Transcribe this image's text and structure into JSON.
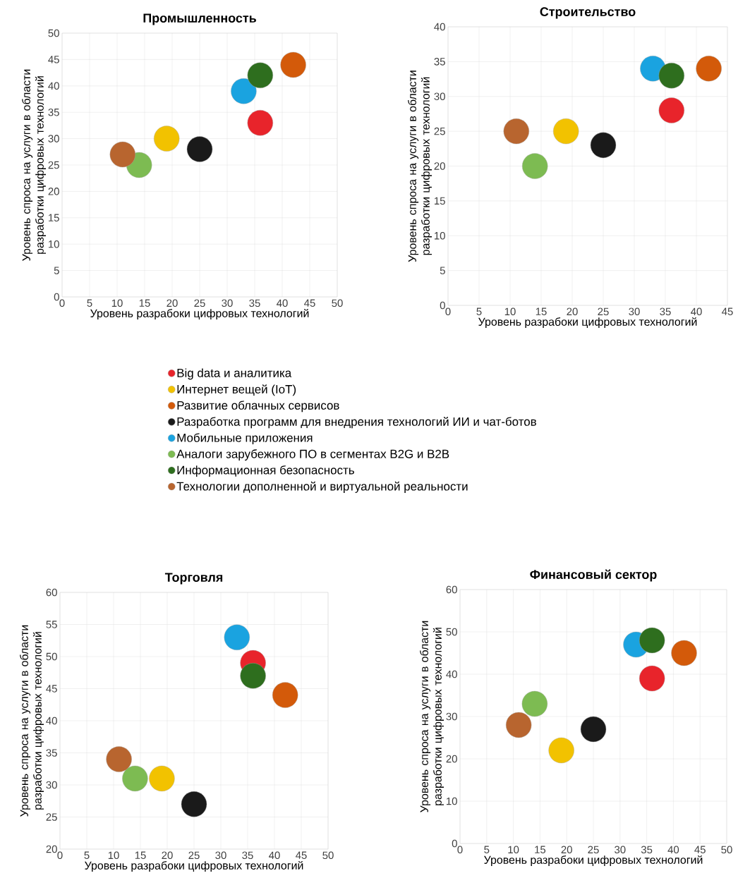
{
  "chart_data": [
    {
      "type": "bubble",
      "title": "Промышленность",
      "xlabel": "Уровень разрабоки цифровых технологий",
      "ylabel": "Уровень спроса на услуги в области разработки цифровых технологий",
      "xlim": [
        0,
        50
      ],
      "ylim": [
        0,
        50
      ],
      "xticks": [
        0,
        5,
        10,
        15,
        20,
        25,
        30,
        35,
        40,
        45,
        50
      ],
      "yticks": [
        0,
        5,
        10,
        15,
        20,
        25,
        30,
        35,
        40,
        45,
        50
      ],
      "grid": true,
      "legend": "bottom",
      "series": [
        {
          "name": "Big data и аналитика",
          "color": "#e8242b",
          "x": [
            36
          ],
          "values": [
            33
          ],
          "sizes": [
            1
          ]
        },
        {
          "name": "Интернет вещей (IoT)",
          "color": "#f2c200",
          "x": [
            19
          ],
          "values": [
            30
          ],
          "sizes": [
            1
          ]
        },
        {
          "name": "Развитие облачных сервисов",
          "color": "#d35a0a",
          "x": [
            42
          ],
          "values": [
            44
          ],
          "sizes": [
            1
          ]
        },
        {
          "name": "Разработка программ для внедрения технологий ИИ и чат-ботов",
          "color": "#1a1a1a",
          "x": [
            25
          ],
          "values": [
            28
          ],
          "sizes": [
            1
          ]
        },
        {
          "name": "Мобильные приложения",
          "color": "#1aa3e0",
          "x": [
            33
          ],
          "values": [
            39
          ],
          "sizes": [
            1
          ]
        },
        {
          "name": "Аналоги зарубежного ПО в сегментах B2G и B2B",
          "color": "#7dbb52",
          "x": [
            14
          ],
          "values": [
            25
          ],
          "sizes": [
            1
          ]
        },
        {
          "name": "Информационная безопасность",
          "color": "#2e6e1e",
          "x": [
            36
          ],
          "values": [
            42
          ],
          "sizes": [
            1
          ]
        },
        {
          "name": "Технологии дополненной и виртуальной реальности",
          "color": "#b8652f",
          "x": [
            11
          ],
          "values": [
            27
          ],
          "sizes": [
            1
          ]
        }
      ]
    },
    {
      "type": "bubble",
      "title": "Строительство",
      "xlabel": "Уровень разрабоки цифровых технологий",
      "ylabel": "Уровень спроса на услуги в области разработки цифровых технологий",
      "xlim": [
        0,
        45
      ],
      "ylim": [
        0,
        40
      ],
      "xticks": [
        0,
        5,
        10,
        15,
        20,
        25,
        30,
        35,
        40,
        45
      ],
      "yticks": [
        0,
        5,
        10,
        15,
        20,
        25,
        30,
        35,
        40
      ],
      "grid": true,
      "series": [
        {
          "color": "#e8242b",
          "x": [
            36
          ],
          "values": [
            28
          ],
          "sizes": [
            1
          ]
        },
        {
          "color": "#f2c200",
          "x": [
            19
          ],
          "values": [
            25
          ],
          "sizes": [
            1
          ]
        },
        {
          "color": "#d35a0a",
          "x": [
            42
          ],
          "values": [
            34
          ],
          "sizes": [
            1
          ]
        },
        {
          "color": "#1a1a1a",
          "x": [
            25
          ],
          "values": [
            23
          ],
          "sizes": [
            1
          ]
        },
        {
          "color": "#1aa3e0",
          "x": [
            33
          ],
          "values": [
            34
          ],
          "sizes": [
            1
          ]
        },
        {
          "color": "#7dbb52",
          "x": [
            14
          ],
          "values": [
            20
          ],
          "sizes": [
            1
          ]
        },
        {
          "color": "#2e6e1e",
          "x": [
            36
          ],
          "values": [
            33
          ],
          "sizes": [
            1
          ]
        },
        {
          "color": "#b8652f",
          "x": [
            11
          ],
          "values": [
            25
          ],
          "sizes": [
            1
          ]
        }
      ]
    },
    {
      "type": "bubble",
      "title": "Торговля",
      "xlabel": "Уровень разрабоки цифровых технологий",
      "ylabel": "Уровень спроса на услуги в области разработки цифровых технологий",
      "xlim": [
        0,
        50
      ],
      "ylim": [
        20,
        60
      ],
      "xticks": [
        0,
        5,
        10,
        15,
        20,
        25,
        30,
        35,
        40,
        45,
        50
      ],
      "yticks": [
        20,
        25,
        30,
        35,
        40,
        45,
        50,
        55,
        60
      ],
      "grid": true,
      "series": [
        {
          "color": "#e8242b",
          "x": [
            36
          ],
          "values": [
            49
          ],
          "sizes": [
            1
          ]
        },
        {
          "color": "#f2c200",
          "x": [
            19
          ],
          "values": [
            31
          ],
          "sizes": [
            1
          ]
        },
        {
          "color": "#d35a0a",
          "x": [
            42
          ],
          "values": [
            44
          ],
          "sizes": [
            1
          ]
        },
        {
          "color": "#1a1a1a",
          "x": [
            25
          ],
          "values": [
            27
          ],
          "sizes": [
            1
          ]
        },
        {
          "color": "#1aa3e0",
          "x": [
            33
          ],
          "values": [
            53
          ],
          "sizes": [
            1
          ]
        },
        {
          "color": "#7dbb52",
          "x": [
            14
          ],
          "values": [
            31
          ],
          "sizes": [
            1
          ]
        },
        {
          "color": "#2e6e1e",
          "x": [
            36
          ],
          "values": [
            47
          ],
          "sizes": [
            1
          ]
        },
        {
          "color": "#b8652f",
          "x": [
            11
          ],
          "values": [
            34
          ],
          "sizes": [
            1
          ]
        }
      ]
    },
    {
      "type": "bubble",
      "title": "Финансовый сектор",
      "xlabel": "Уровень разрабоки цифровых технологий",
      "ylabel": "Уровень спроса на услуги в области разработки цифровых технологий",
      "xlim": [
        0,
        50
      ],
      "ylim": [
        0,
        60
      ],
      "xticks": [
        0,
        5,
        10,
        15,
        20,
        25,
        30,
        35,
        40,
        45,
        50
      ],
      "yticks": [
        0,
        10,
        20,
        30,
        40,
        50,
        60
      ],
      "grid": true,
      "series": [
        {
          "color": "#e8242b",
          "x": [
            36
          ],
          "values": [
            39
          ],
          "sizes": [
            1
          ]
        },
        {
          "color": "#f2c200",
          "x": [
            19
          ],
          "values": [
            22
          ],
          "sizes": [
            1
          ]
        },
        {
          "color": "#d35a0a",
          "x": [
            42
          ],
          "values": [
            45
          ],
          "sizes": [
            1
          ]
        },
        {
          "color": "#1a1a1a",
          "x": [
            25
          ],
          "values": [
            27
          ],
          "sizes": [
            1
          ]
        },
        {
          "color": "#1aa3e0",
          "x": [
            33
          ],
          "values": [
            47
          ],
          "sizes": [
            1
          ]
        },
        {
          "color": "#7dbb52",
          "x": [
            14
          ],
          "values": [
            33
          ],
          "sizes": [
            1
          ]
        },
        {
          "color": "#2e6e1e",
          "x": [
            36
          ],
          "values": [
            48
          ],
          "sizes": [
            1
          ]
        },
        {
          "color": "#b8652f",
          "x": [
            11
          ],
          "values": [
            28
          ],
          "sizes": [
            1
          ]
        }
      ]
    }
  ]
}
